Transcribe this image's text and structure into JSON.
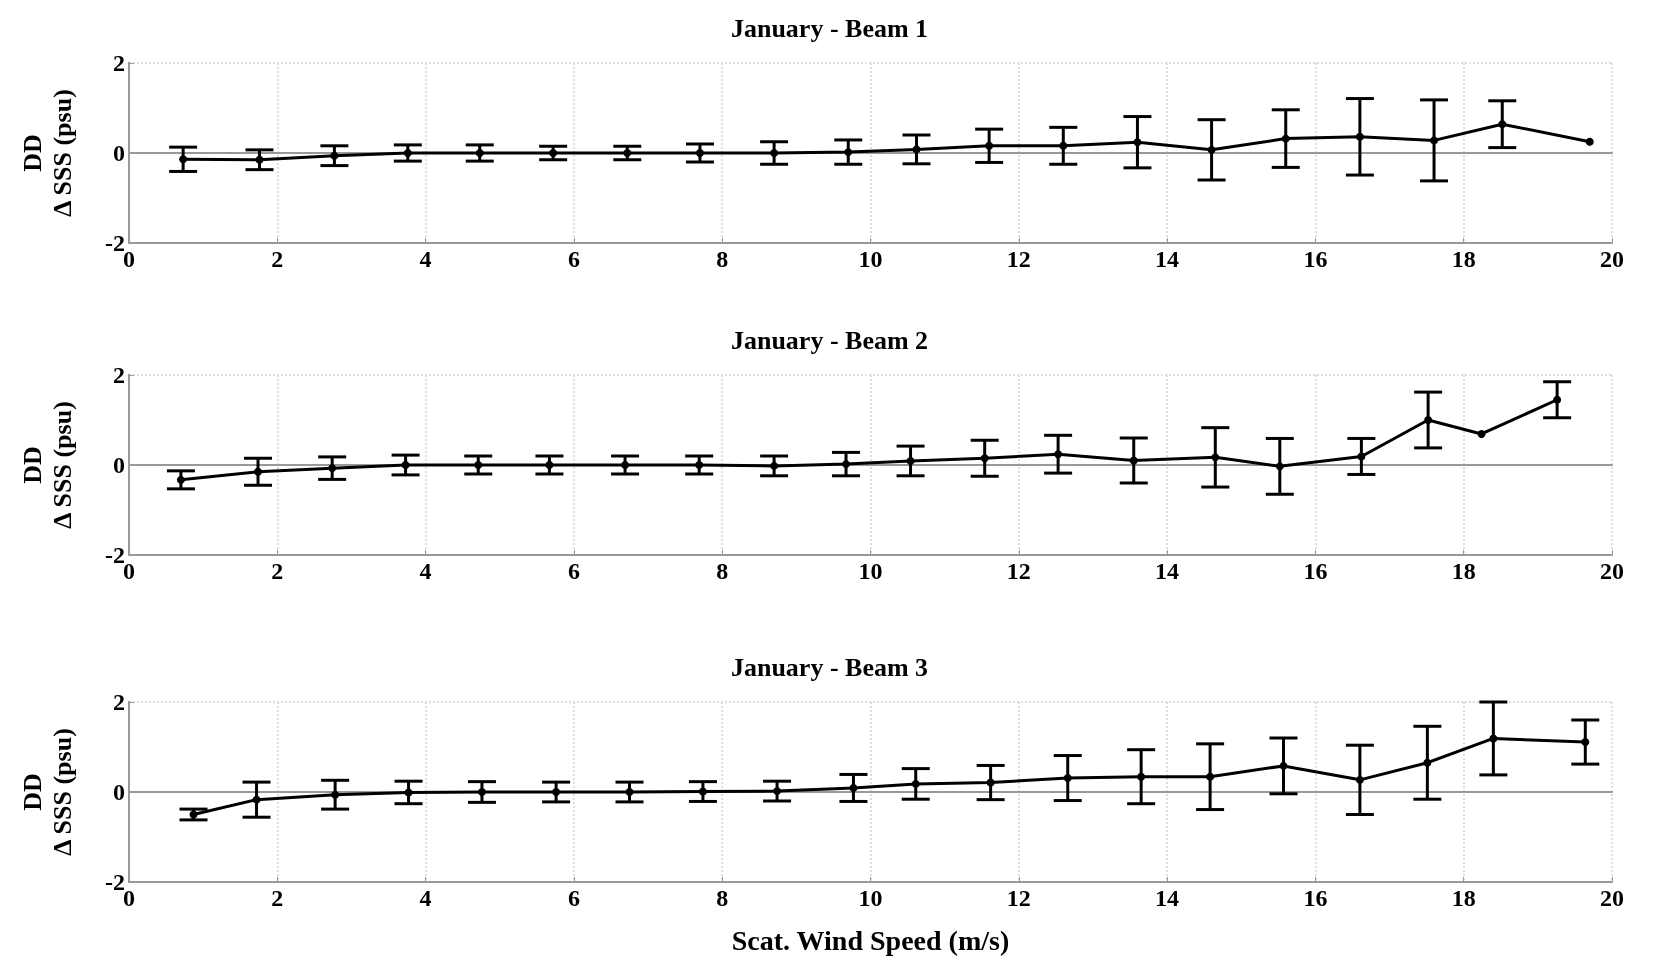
{
  "chart_data": [
    {
      "type": "line",
      "title": "January - Beam 1",
      "ylabel": "DD\nΔ SSS (psu)",
      "xlim": [
        0,
        20
      ],
      "xticks": [
        0,
        2,
        4,
        6,
        8,
        10,
        12,
        14,
        16,
        18,
        20
      ],
      "ylim": [
        -2,
        2
      ],
      "yticks": [
        -2,
        0,
        2
      ],
      "grid": true,
      "marker": "circle",
      "line_style": "solid",
      "series": [
        {
          "color": "#000000",
          "x": [
            0.73,
            1.76,
            2.77,
            3.76,
            4.73,
            5.72,
            6.72,
            7.7,
            8.7,
            9.7,
            10.62,
            11.6,
            12.6,
            13.6,
            14.6,
            15.6,
            16.6,
            17.6,
            18.52,
            19.7
          ],
          "values": [
            -0.14,
            -0.15,
            -0.06,
            0,
            0,
            0,
            0,
            0,
            0,
            0.02,
            0.08,
            0.16,
            0.16,
            0.24,
            0.07,
            0.32,
            0.36,
            0.28,
            0.64,
            0.25
          ],
          "errors": [
            0.27,
            0.22,
            0.22,
            0.18,
            0.18,
            0.15,
            0.15,
            0.2,
            0.25,
            0.27,
            0.32,
            0.37,
            0.41,
            0.57,
            0.67,
            0.64,
            0.85,
            0.9,
            0.52,
            null
          ]
        }
      ]
    },
    {
      "type": "line",
      "title": "January - Beam 2",
      "ylabel": "DD\nΔ SSS (psu)",
      "xlim": [
        0,
        20
      ],
      "xticks": [
        0,
        2,
        4,
        6,
        8,
        10,
        12,
        14,
        16,
        18,
        20
      ],
      "ylim": [
        -2,
        2
      ],
      "yticks": [
        -2,
        0,
        2
      ],
      "grid": true,
      "marker": "circle",
      "line_style": "solid",
      "series": [
        {
          "color": "#000000",
          "x": [
            0.7,
            1.74,
            2.74,
            3.73,
            4.71,
            5.67,
            6.69,
            7.69,
            8.7,
            9.67,
            10.54,
            11.54,
            12.53,
            13.55,
            14.65,
            15.52,
            16.62,
            17.52,
            18.24,
            19.26
          ],
          "values": [
            -0.33,
            -0.15,
            -0.07,
            0,
            0,
            0,
            0,
            0,
            -0.02,
            0.02,
            0.09,
            0.15,
            0.24,
            0.1,
            0.17,
            -0.03,
            0.19,
            1.0,
            0.69,
            1.45
          ],
          "errors": [
            0.2,
            0.3,
            0.25,
            0.22,
            0.2,
            0.2,
            0.2,
            0.2,
            0.22,
            0.26,
            0.33,
            0.4,
            0.42,
            0.5,
            0.66,
            0.62,
            0.4,
            0.62,
            null,
            0.4
          ]
        }
      ]
    },
    {
      "type": "line",
      "title": "January - Beam 3",
      "xlabel": "Scat. Wind Speed (m/s)",
      "ylabel": "DD\nΔ SSS (psu)",
      "xlim": [
        0,
        20
      ],
      "xticks": [
        0,
        2,
        4,
        6,
        8,
        10,
        12,
        14,
        16,
        18,
        20
      ],
      "ylim": [
        -2,
        2
      ],
      "yticks": [
        -2,
        0,
        2
      ],
      "grid": true,
      "marker": "circle",
      "line_style": "solid",
      "series": [
        {
          "color": "#000000",
          "x": [
            0.87,
            1.72,
            2.78,
            3.77,
            4.76,
            5.76,
            6.75,
            7.74,
            8.74,
            9.77,
            10.61,
            11.62,
            12.66,
            13.65,
            14.58,
            15.57,
            16.6,
            17.51,
            18.4,
            19.64
          ],
          "values": [
            -0.5,
            -0.17,
            -0.06,
            -0.01,
            0,
            0,
            0,
            0.01,
            0.02,
            0.09,
            0.18,
            0.21,
            0.31,
            0.34,
            0.34,
            0.58,
            0.27,
            0.65,
            1.19,
            1.11
          ],
          "errors": [
            0.12,
            0.39,
            0.32,
            0.25,
            0.23,
            0.22,
            0.22,
            0.22,
            0.22,
            0.3,
            0.34,
            0.38,
            0.5,
            0.6,
            0.73,
            0.62,
            0.77,
            0.81,
            0.81,
            0.49
          ]
        }
      ]
    }
  ]
}
